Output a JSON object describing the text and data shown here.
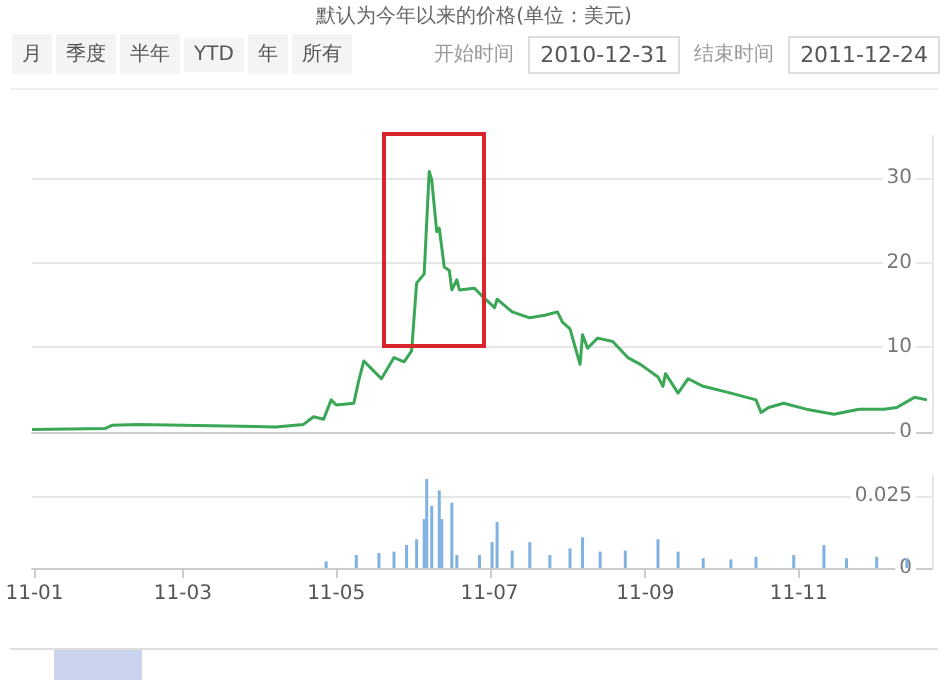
{
  "chart_data": [
    {
      "type": "line",
      "title": "默认为今年以来的价格(单位：美元)",
      "annotations": [
        "月",
        "季度",
        "半年",
        "YTD",
        "年",
        "所有",
        "开始时间",
        "2010-12-31",
        "结束时间",
        "2011-12-24"
      ],
      "x": [
        "2010-12-31",
        "2011-01-29",
        "2011-02-01",
        "2011-02-11",
        "2011-04-07",
        "2011-04-18",
        "2011-04-22",
        "2011-04-26",
        "2011-04-29",
        "2011-05-01",
        "2011-05-08",
        "2011-05-10",
        "2011-05-12",
        "2011-05-15",
        "2011-05-19",
        "2011-05-24",
        "2011-05-28",
        "2011-05-31",
        "2011-06-02",
        "2011-06-05",
        "2011-06-07",
        "2011-06-08",
        "2011-06-10",
        "2011-06-11",
        "2011-06-13",
        "2011-06-15",
        "2011-06-16",
        "2011-06-18",
        "2011-06-19",
        "2011-06-25",
        "2011-06-28",
        "2011-07-03",
        "2011-07-04",
        "2011-07-10",
        "2011-07-17",
        "2011-07-23",
        "2011-07-28",
        "2011-07-30",
        "2011-08-02",
        "2011-08-06",
        "2011-08-07",
        "2011-08-09",
        "2011-08-13",
        "2011-08-19",
        "2011-08-25",
        "2011-08-30",
        "2011-09-06",
        "2011-09-08",
        "2011-09-09",
        "2011-09-14",
        "2011-09-18",
        "2011-09-24",
        "2011-10-05",
        "2011-10-15",
        "2011-10-17",
        "2011-10-20",
        "2011-10-26",
        "2011-11-04",
        "2011-11-15",
        "2011-11-25",
        "2011-12-05",
        "2011-12-10",
        "2011-12-17",
        "2011-12-22"
      ],
      "series": [
        {
          "color": "#3aa757",
          "values": [
            0.3,
            0.4,
            0.8,
            0.9,
            0.6,
            0.9,
            1.8,
            1.5,
            3.8,
            3.2,
            3.4,
            6.1,
            8.4,
            7.5,
            6.3,
            8.8,
            8.3,
            9.6,
            17.6,
            18.7,
            30.8,
            29.8,
            23.7,
            24.1,
            19.5,
            19.1,
            16.8,
            18.0,
            16.8,
            17.0,
            16.1,
            14.7,
            15.7,
            14.2,
            13.5,
            13.8,
            14.2,
            13.0,
            12.2,
            8.0,
            11.5,
            9.9,
            11.1,
            10.7,
            8.8,
            8.0,
            6.5,
            5.4,
            6.9,
            4.6,
            6.3,
            5.4,
            4.6,
            3.8,
            2.3,
            2.9,
            3.4,
            2.7,
            2.1,
            2.7,
            2.7,
            2.9,
            4.1,
            3.8
          ]
        }
      ],
      "xlim": [
        "2010-12-31",
        "2011-12-24"
      ],
      "ylim": [
        0,
        35
      ],
      "yticks": [
        0,
        10,
        20,
        30
      ],
      "tick_labels": "y",
      "grid": "y",
      "marker": "none"
    },
    {
      "type": "bar",
      "x": [
        "2011-04-27",
        "2011-05-09",
        "2011-05-18",
        "2011-05-24",
        "2011-05-29",
        "2011-06-02",
        "2011-06-05",
        "2011-06-06",
        "2011-06-08",
        "2011-06-11",
        "2011-06-12",
        "2011-06-16",
        "2011-06-18",
        "2011-06-27",
        "2011-07-02",
        "2011-07-04",
        "2011-07-10",
        "2011-07-17",
        "2011-07-25",
        "2011-08-02",
        "2011-08-07",
        "2011-08-14",
        "2011-08-24",
        "2011-09-06",
        "2011-09-14",
        "2011-09-24",
        "2011-10-05",
        "2011-10-15",
        "2011-10-30",
        "2011-11-11",
        "2011-11-20",
        "2011-12-02",
        "2011-12-14"
      ],
      "series": [
        {
          "color": "#7fb2e0",
          "values": [
            0.0023,
            0.0045,
            0.0052,
            0.0057,
            0.008,
            0.01,
            0.017,
            0.031,
            0.0216,
            0.027,
            0.017,
            0.0227,
            0.0045,
            0.0045,
            0.009,
            0.016,
            0.006,
            0.009,
            0.0045,
            0.0068,
            0.0107,
            0.0057,
            0.006,
            0.01,
            0.0057,
            0.0034,
            0.003,
            0.0039,
            0.0045,
            0.008,
            0.0034,
            0.0039,
            0.0034
          ]
        }
      ],
      "xlim": [
        "2010-12-31",
        "2011-12-24"
      ],
      "xticks": [
        {
          "value": "2011-01-01",
          "label": "11-01"
        },
        {
          "value": "2011-03-01",
          "label": "11-03"
        },
        {
          "value": "2011-05-01",
          "label": "11-05"
        },
        {
          "value": "2011-07-01",
          "label": "11-07"
        },
        {
          "value": "2011-09-01",
          "label": "11-09"
        },
        {
          "value": "2011-11-01",
          "label": "11-11"
        }
      ],
      "ylim": [
        0,
        0.032
      ],
      "yticks": [
        0,
        0.025
      ],
      "grid": "y"
    }
  ]
}
